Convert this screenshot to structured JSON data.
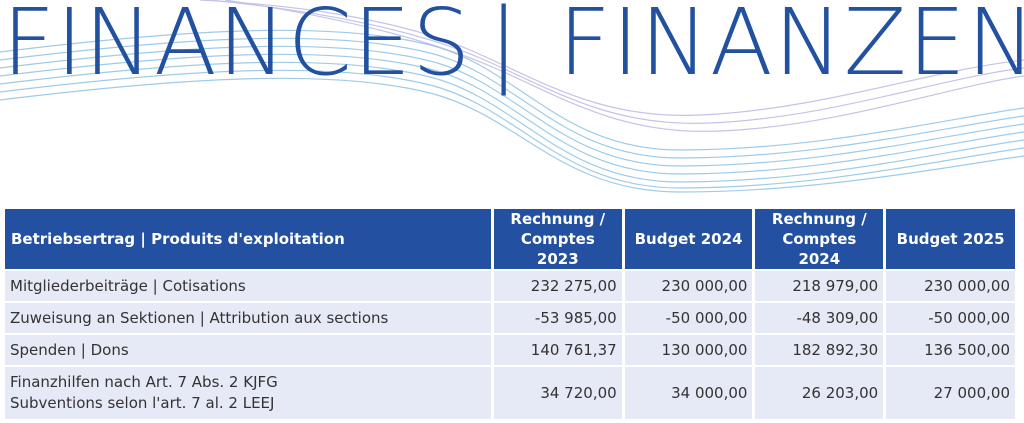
{
  "heading": {
    "left": "FINANCES",
    "separator": "|",
    "right": "FINANZEN"
  },
  "table": {
    "headers": {
      "label": "Betriebsertrag | Produits d'exploitation",
      "col1_line1": "Rechnung /",
      "col1_line2": "Comptes 2023",
      "col2": "Budget 2024",
      "col3_line1": "Rechnung /",
      "col3_line2": "Comptes 2024",
      "col4": "Budget 2025"
    },
    "rows": [
      {
        "label": "Mitgliederbeiträge | Cotisations",
        "v1": "232 275,00",
        "v2": "230 000,00",
        "v3": "218 979,00",
        "v4": "230 000,00"
      },
      {
        "label": "Zuweisung an Sektionen | Attribution aux sections",
        "v1": "-53 985,00",
        "v2": "-50 000,00",
        "v3": "-48 309,00",
        "v4": "-50 000,00"
      },
      {
        "label": "Spenden | Dons",
        "v1": "140 761,37",
        "v2": "130 000,00",
        "v3": "182 892,30",
        "v4": "136 500,00"
      },
      {
        "label_line1": "Finanzhilfen nach Art. 7 Abs. 2 KJFG",
        "label_line2": "Subventions selon l'art. 7 al. 2 LEEJ",
        "v1": "34 720,00",
        "v2": "34 000,00",
        "v3": "26 203,00",
        "v4": "27 000,00"
      }
    ]
  },
  "colors": {
    "header_bg": "#2350a0",
    "row_bg": "#e6eaf6",
    "title": "#2251a0",
    "wave": "#8fc3e6"
  }
}
